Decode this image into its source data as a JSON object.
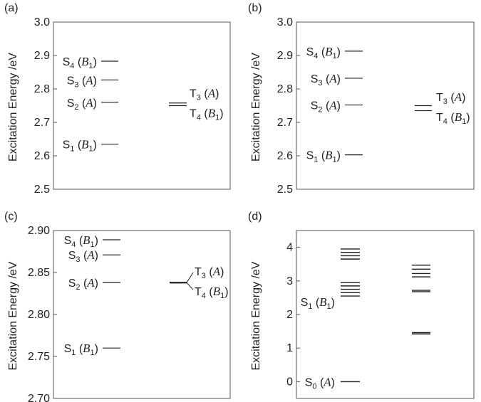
{
  "chart_data": [
    {
      "panel": "(a)",
      "type": "energy-level",
      "ylabel": "Excitation Energy /eV",
      "ylim": [
        2.5,
        3.0
      ],
      "yticks": [
        "2.5",
        "2.6",
        "2.7",
        "2.8",
        "2.9",
        "3.0"
      ],
      "singlets": [
        {
          "state": "S",
          "sub": "1",
          "sym": "B",
          "symsub": "1",
          "energy": 2.635
        },
        {
          "state": "S",
          "sub": "2",
          "sym": "A",
          "symsub": "",
          "energy": 2.76
        },
        {
          "state": "S",
          "sub": "3",
          "sym": "A",
          "symsub": "",
          "energy": 2.827
        },
        {
          "state": "S",
          "sub": "4",
          "sym": "B",
          "symsub": "1",
          "energy": 2.883
        }
      ],
      "triplets": [
        {
          "state": "T",
          "sub": "3",
          "sym": "A",
          "symsub": "",
          "energy": 2.758
        },
        {
          "state": "T",
          "sub": "4",
          "sym": "B",
          "symsub": "1",
          "energy": 2.75
        }
      ]
    },
    {
      "panel": "(b)",
      "type": "energy-level",
      "ylabel": "Excitation Energy /eV",
      "ylim": [
        2.5,
        3.0
      ],
      "yticks": [
        "2.5",
        "2.6",
        "2.7",
        "2.8",
        "2.9",
        "3.0"
      ],
      "singlets": [
        {
          "state": "S",
          "sub": "1",
          "sym": "B",
          "symsub": "1",
          "energy": 2.603
        },
        {
          "state": "S",
          "sub": "2",
          "sym": "A",
          "symsub": "",
          "energy": 2.752
        },
        {
          "state": "S",
          "sub": "3",
          "sym": "A",
          "symsub": "",
          "energy": 2.832
        },
        {
          "state": "S",
          "sub": "4",
          "sym": "B",
          "symsub": "1",
          "energy": 2.913
        }
      ],
      "triplets": [
        {
          "state": "T",
          "sub": "3",
          "sym": "A",
          "symsub": "",
          "energy": 2.75
        },
        {
          "state": "T",
          "sub": "4",
          "sym": "B",
          "symsub": "1",
          "energy": 2.735
        }
      ]
    },
    {
      "panel": "(c)",
      "type": "energy-level",
      "ylabel": "Excitation Energy /eV",
      "ylim": [
        2.7,
        2.9
      ],
      "yticks": [
        "2.70",
        "2.75",
        "2.80",
        "2.85",
        "2.90"
      ],
      "singlets": [
        {
          "state": "S",
          "sub": "1",
          "sym": "B",
          "symsub": "1",
          "energy": 2.76
        },
        {
          "state": "S",
          "sub": "2",
          "sym": "A",
          "symsub": "",
          "energy": 2.838
        },
        {
          "state": "S",
          "sub": "3",
          "sym": "A",
          "symsub": "",
          "energy": 2.871
        },
        {
          "state": "S",
          "sub": "4",
          "sym": "B",
          "symsub": "1",
          "energy": 2.889
        }
      ],
      "triplets": [
        {
          "state": "T",
          "sub": "3",
          "sym": "A",
          "symsub": "",
          "energy": 2.8385
        },
        {
          "state": "T",
          "sub": "4",
          "sym": "B",
          "symsub": "1",
          "energy": 2.8375
        }
      ]
    },
    {
      "panel": "(d)",
      "type": "energy-level",
      "ylabel": "Excitation Energy /eV",
      "ylim": [
        -0.5,
        4.5
      ],
      "yticks": [
        "0",
        "1",
        "2",
        "3",
        "4"
      ],
      "labeled_states": [
        {
          "state": "S",
          "sub": "1",
          "sym": "B",
          "symsub": "1",
          "energy": 2.55
        },
        {
          "state": "S",
          "sub": "0",
          "sym": "A",
          "symsub": "",
          "energy": 0.0
        }
      ],
      "singlet_levels": [
        0.0,
        2.55,
        2.65,
        2.75,
        2.85,
        2.95,
        3.65,
        3.75,
        3.85,
        3.95
      ],
      "triplet_levels": [
        1.42,
        1.46,
        2.68,
        2.72,
        3.12,
        3.22,
        3.35,
        3.47
      ]
    }
  ]
}
